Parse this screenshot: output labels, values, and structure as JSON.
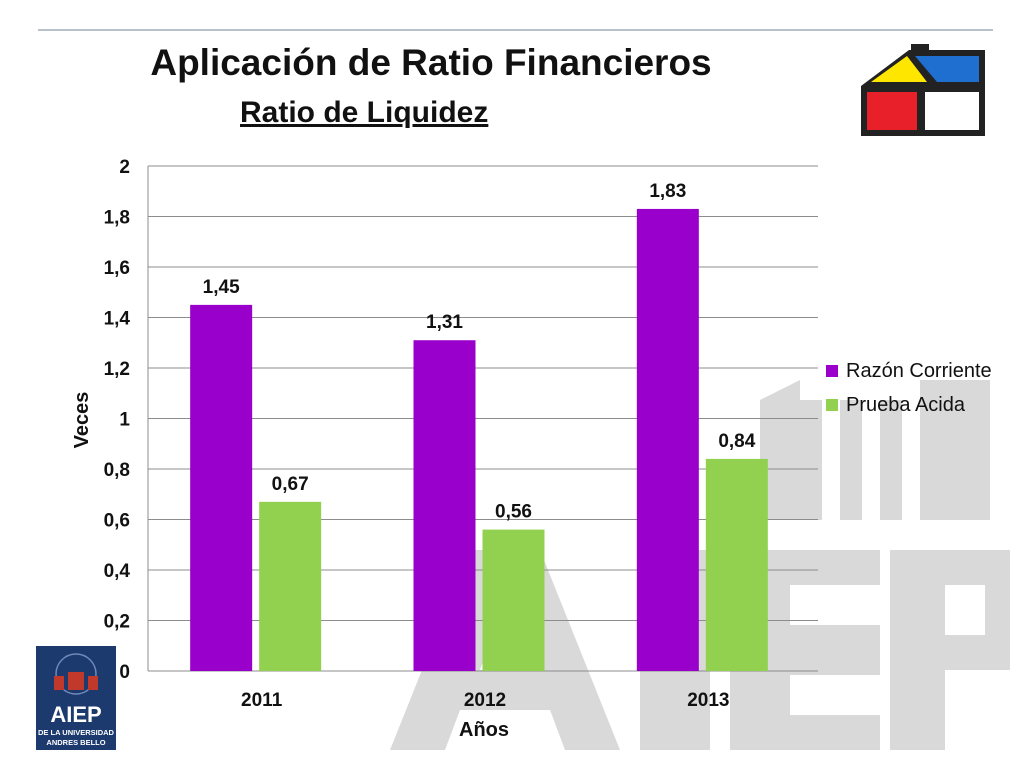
{
  "title": "Aplicación de Ratio Financieros",
  "subtitle": "Ratio de Liquidez",
  "colors": {
    "razon": "#9900cc",
    "prueba": "#92d050",
    "grid": "#8c8c8c"
  },
  "logo": {
    "name": "AIEP",
    "tagline_1": "DE LA UNIVERSIDAD",
    "tagline_2": "ANDRES BELLO"
  },
  "chart_data": {
    "type": "bar",
    "categories": [
      "2011",
      "2012",
      "2013"
    ],
    "series": [
      {
        "name": "Razón Corriente",
        "values": [
          1.45,
          1.31,
          1.83
        ],
        "labels": [
          "1,45",
          "1,31",
          "1,83"
        ]
      },
      {
        "name": "Prueba Acida",
        "values": [
          0.67,
          0.56,
          0.84
        ],
        "labels": [
          "0,67",
          "0,56",
          "0,84"
        ]
      }
    ],
    "xlabel": "Años",
    "ylabel": "Veces",
    "ylim": [
      0,
      2
    ],
    "yticks": [
      0,
      0.2,
      0.4,
      0.6,
      0.8,
      1,
      1.2,
      1.4,
      1.6,
      1.8,
      2
    ],
    "ytick_labels": [
      "0",
      "0,2",
      "0,4",
      "0,6",
      "0,8",
      "1",
      "1,2",
      "1,4",
      "1,6",
      "1,8",
      "2"
    ],
    "grid": true,
    "legend_position": "right"
  }
}
